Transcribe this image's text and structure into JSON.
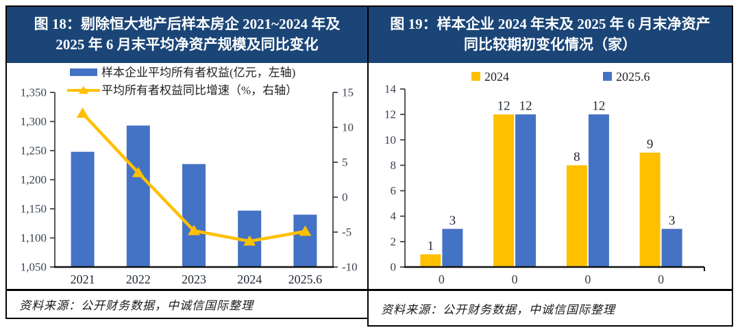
{
  "colors": {
    "header_bg": "#1b4577",
    "bar_blue": "#4472C4",
    "bar_yellow": "#FFC000",
    "axis_text": "#39424f",
    "label_text": "#1f2733",
    "axis_line": "#3a3a3a",
    "baseline": "#111111"
  },
  "panels": {
    "left": {
      "title": "图 18：剔除恒大地产后样本房企 2021~2024 年及 2025 年 6 月末平均净资产规模及同比变化",
      "source": "资料来源：公开财务数据，中诚信国际整理"
    },
    "right": {
      "title": "图 19：样本企业 2024 年末及 2025 年 6 月末净资产同比较期初变化情况（家）",
      "source": "资料来源：公开财务数据，中诚信国际整理"
    }
  },
  "chart_data": [
    {
      "type": "bar",
      "subtype": "bar+line-dual-axis",
      "title": "剔除恒大地产后样本房企 2021~2024 年及 2025 年 6 月末平均净资产规模及同比变化",
      "categories": [
        "2021",
        "2022",
        "2023",
        "2024",
        "2025.6"
      ],
      "series": [
        {
          "name": "样本企业平均所有者权益(亿元，左轴)",
          "chart": "bar",
          "axis": "left",
          "color": "#4472C4",
          "values": [
            1248,
            1293,
            1227,
            1147,
            1140
          ]
        },
        {
          "name": "平均所有者权益同比增速（%，右轴）",
          "chart": "line",
          "axis": "right",
          "color": "#FFC000",
          "marker": "triangle",
          "values": [
            12.0,
            3.5,
            -4.8,
            -6.3,
            -4.9
          ]
        }
      ],
      "left_axis": {
        "min": 1050,
        "max": 1350,
        "step": 50,
        "format": "comma"
      },
      "right_axis": {
        "min": -10,
        "max": 15,
        "step": 5
      },
      "legend_position": "top",
      "grid": false
    },
    {
      "type": "bar",
      "subtype": "grouped",
      "title": "样本企业 2024 年末及 2025 年 6 月末净资产同比较期初变化情况（家）",
      "categories": [
        "0",
        "0",
        "0",
        "0"
      ],
      "series": [
        {
          "name": "2024",
          "color": "#FFC000",
          "values": [
            1,
            12,
            8,
            9
          ]
        },
        {
          "name": "2025.6",
          "color": "#4472C4",
          "values": [
            3,
            12,
            12,
            3
          ]
        }
      ],
      "y_axis": {
        "min": 0,
        "max": 14,
        "step": 2
      },
      "data_labels": true,
      "legend_position": "top",
      "grid": false
    }
  ]
}
